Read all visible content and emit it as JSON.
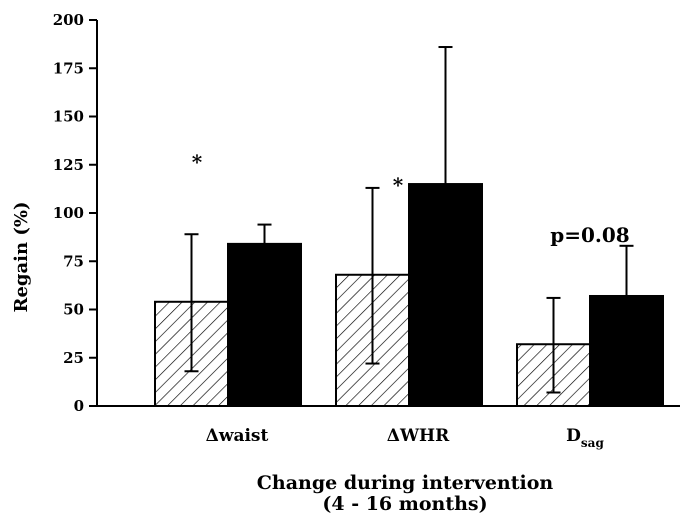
{
  "chart_data": {
    "type": "bar",
    "categories": [
      "waist",
      "WHR",
      "D"
    ],
    "category_prefix": [
      "Δ",
      "Δ",
      ""
    ],
    "category_subscript": [
      "",
      "",
      "sag"
    ],
    "series": [
      {
        "pattern": "hatched",
        "color": "#ffffff",
        "values": [
          54,
          68,
          32
        ],
        "error_plus": [
          35,
          45,
          24
        ],
        "error_minus": [
          36,
          46,
          25
        ]
      },
      {
        "pattern": "solid",
        "color": "#000000",
        "values": [
          84,
          115,
          57
        ],
        "error_plus": [
          10,
          71,
          26
        ]
      }
    ],
    "ylabel": "Regain (%)",
    "xlabel_lines": [
      "Change during intervention",
      "(4 - 16 months)"
    ],
    "ylim": [
      0,
      200
    ],
    "yticks": [
      0,
      25,
      50,
      75,
      100,
      125,
      150,
      175,
      200
    ],
    "grid": false,
    "annotations": [
      {
        "text": "*",
        "category": 0,
        "y": 128
      },
      {
        "text": "*",
        "category": 1,
        "y": 116
      },
      {
        "text": "p=0.08",
        "category": 2,
        "y": 88
      }
    ]
  }
}
